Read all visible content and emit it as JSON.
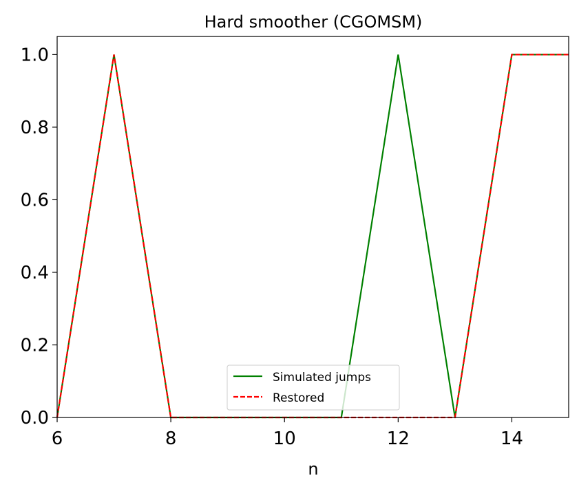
{
  "chart_data": {
    "type": "line",
    "title": "Hard smoother (CGOMSM)",
    "xlabel": "n",
    "ylabel": "",
    "xlim": [
      6,
      15
    ],
    "ylim": [
      0,
      1.05
    ],
    "xticks": [
      6,
      8,
      10,
      12,
      14
    ],
    "yticks": [
      0.0,
      0.2,
      0.4,
      0.6,
      0.8,
      1.0
    ],
    "xtick_labels": [
      "6",
      "8",
      "10",
      "12",
      "14"
    ],
    "ytick_labels": [
      "0.0",
      "0.2",
      "0.4",
      "0.6",
      "0.8",
      "1.0"
    ],
    "grid": false,
    "legend_position": "bottom-center",
    "x": [
      6,
      7,
      8,
      9,
      10,
      11,
      12,
      13,
      14,
      15
    ],
    "series": [
      {
        "name": "Simulated jumps",
        "values": [
          0,
          1,
          0,
          0,
          0,
          0,
          1,
          0,
          1,
          1
        ],
        "color": "#008000",
        "style": "solid"
      },
      {
        "name": "Restored",
        "values": [
          0,
          1,
          0,
          0,
          0,
          0,
          0,
          0,
          1,
          1
        ],
        "color": "#ff0000",
        "style": "dashed"
      }
    ]
  }
}
